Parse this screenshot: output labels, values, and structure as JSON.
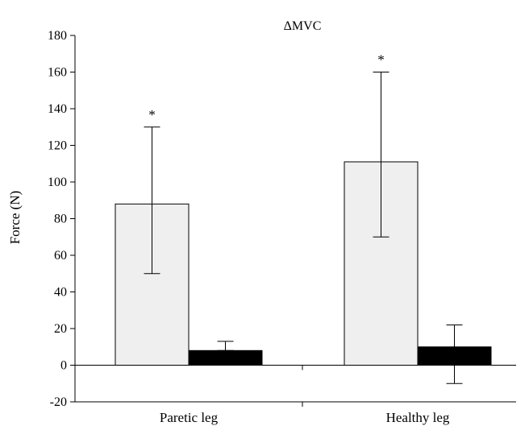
{
  "chart_data": {
    "type": "bar",
    "title": "ΔMVC",
    "ylabel": "Force (N)",
    "xlabel": "",
    "categories": [
      "Paretic leg",
      "Healthy leg"
    ],
    "ylim": [
      -20,
      180
    ],
    "yticks": [
      -20,
      0,
      20,
      40,
      60,
      80,
      100,
      120,
      140,
      160,
      180
    ],
    "ytick_labels": [
      "-20",
      "0",
      "20",
      "40",
      "60",
      "80",
      "100",
      "120",
      "140",
      "160",
      "180"
    ],
    "grid": false,
    "legend": "none",
    "series": [
      {
        "color": "#efefef",
        "values": [
          88,
          111
        ],
        "error_upper": [
          130,
          160
        ],
        "error_lower": [
          50,
          70
        ],
        "annotations": [
          "*",
          "*"
        ]
      },
      {
        "color": "#000000",
        "values": [
          8,
          10
        ],
        "error_upper": [
          13,
          22
        ],
        "error_lower": [
          8,
          -10
        ],
        "annotations": [
          "",
          ""
        ]
      }
    ]
  }
}
